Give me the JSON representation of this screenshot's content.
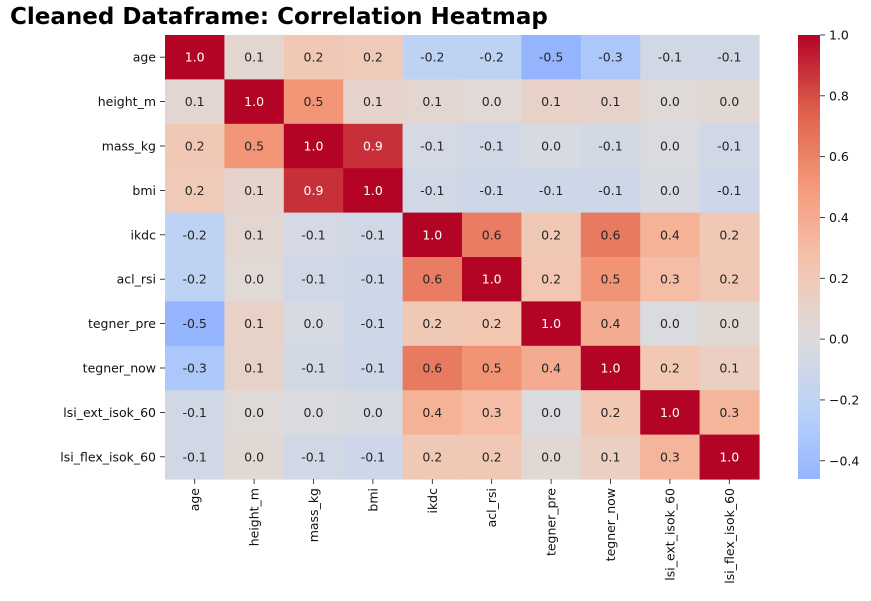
{
  "chart_data": {
    "type": "heatmap",
    "title": "Cleaned Dataframe: Correlation Heatmap",
    "rows": [
      "age",
      "height_m",
      "mass_kg",
      "bmi",
      "ikdc",
      "acl_rsi",
      "tegner_pre",
      "tegner_now",
      "lsi_ext_isok_60",
      "lsi_flex_isok_60"
    ],
    "columns": [
      "age",
      "height_m",
      "mass_kg",
      "bmi",
      "ikdc",
      "acl_rsi",
      "tegner_pre",
      "tegner_now",
      "lsi_ext_isok_60",
      "lsi_flex_isok_60"
    ],
    "values": [
      [
        1.0,
        0.06,
        0.21,
        0.19,
        -0.21,
        -0.21,
        -0.46,
        -0.32,
        -0.08,
        -0.09
      ],
      [
        0.06,
        1.0,
        0.52,
        0.09,
        0.06,
        0.03,
        0.11,
        0.1,
        0.02,
        0.04
      ],
      [
        0.21,
        0.52,
        1.0,
        0.88,
        -0.06,
        -0.08,
        -0.05,
        -0.07,
        -0.02,
        -0.09
      ],
      [
        0.19,
        0.09,
        0.88,
        1.0,
        -0.09,
        -0.1,
        -0.1,
        -0.1,
        -0.04,
        -0.11
      ],
      [
        -0.21,
        0.06,
        -0.06,
        -0.09,
        1.0,
        0.63,
        0.2,
        0.64,
        0.36,
        0.2
      ],
      [
        -0.21,
        0.03,
        -0.08,
        -0.1,
        0.63,
        1.0,
        0.23,
        0.53,
        0.29,
        0.21
      ],
      [
        -0.46,
        0.11,
        -0.05,
        -0.1,
        0.2,
        0.23,
        1.0,
        0.4,
        -0.02,
        0.04
      ],
      [
        -0.32,
        0.1,
        -0.07,
        -0.1,
        0.64,
        0.53,
        0.4,
        1.0,
        0.22,
        0.14
      ],
      [
        -0.08,
        0.02,
        -0.02,
        -0.04,
        0.36,
        0.29,
        -0.02,
        0.22,
        1.0,
        0.34
      ],
      [
        -0.09,
        0.04,
        -0.09,
        -0.11,
        0.2,
        0.21,
        0.04,
        0.14,
        0.34,
        1.0
      ]
    ],
    "annotation_format": "1 decimal",
    "colormap": "coolwarm",
    "colorbar": {
      "min": -0.46,
      "max": 1.0,
      "center": 0.0,
      "ticks": [
        -0.4,
        -0.2,
        0.0,
        0.2,
        0.4,
        0.6,
        0.8,
        1.0
      ],
      "tick_labels": [
        "−0.4",
        "−0.2",
        "0.0",
        "0.2",
        "0.4",
        "0.6",
        "0.8",
        "1.0"
      ]
    },
    "grid": false
  }
}
